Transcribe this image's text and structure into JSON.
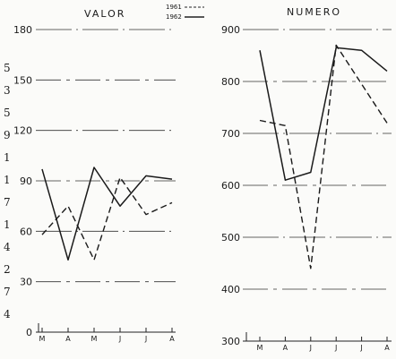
{
  "chart_data": [
    {
      "type": "line",
      "title": "VALOR",
      "categories": [
        "M",
        "A",
        "M",
        "J",
        "J",
        "A"
      ],
      "y_ticks": [
        0,
        30,
        60,
        90,
        120,
        150,
        180
      ],
      "ylim": [
        0,
        180
      ],
      "grid": true,
      "legend_placement": "top-right",
      "series": [
        {
          "name": "1961",
          "style": "dashed",
          "values": [
            58,
            75,
            43,
            92,
            70,
            77
          ]
        },
        {
          "name": "1962",
          "style": "solid",
          "values": [
            97,
            43,
            98,
            75,
            93,
            91
          ]
        }
      ]
    },
    {
      "type": "line",
      "title": "NUMERO",
      "categories": [
        "M",
        "A",
        "J",
        "J",
        "J",
        "A"
      ],
      "y_ticks": [
        300,
        400,
        500,
        600,
        700,
        800,
        900
      ],
      "y_tick_labels": [
        "300",
        "400",
        "500",
        "600",
        "700",
        "800",
        "900"
      ],
      "ylim": [
        300,
        900
      ],
      "grid": true,
      "series": [
        {
          "name": "1961",
          "style": "dashed",
          "values": [
            725,
            715,
            440,
            870,
            795,
            720
          ]
        },
        {
          "name": "1962",
          "style": "solid",
          "values": [
            860,
            610,
            625,
            865,
            860,
            820
          ]
        }
      ]
    }
  ],
  "legend": {
    "label_1961": "1961",
    "label_1962": "1962"
  },
  "edge_glyphs": [
    "5",
    "3",
    "5",
    "9",
    "1",
    "1",
    "7",
    "1",
    "4",
    "2",
    "7",
    "4"
  ]
}
